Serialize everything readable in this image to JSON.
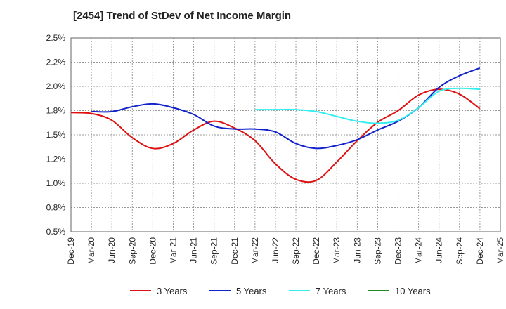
{
  "chart_data": {
    "type": "line",
    "title": "[2454]  Trend of StDev of Net Income Margin",
    "xlabel": "",
    "ylabel": "",
    "x_ticks": [
      "Dec-19",
      "Mar-20",
      "Jun-20",
      "Sep-20",
      "Dec-20",
      "Mar-21",
      "Jun-21",
      "Sep-21",
      "Dec-21",
      "Mar-22",
      "Jun-22",
      "Sep-22",
      "Dec-22",
      "Mar-23",
      "Jun-23",
      "Sep-23",
      "Dec-23",
      "Mar-24",
      "Jun-24",
      "Sep-24",
      "Dec-24",
      "Mar-25"
    ],
    "y_ticks": [
      "0.5%",
      "0.8%",
      "1.0%",
      "1.2%",
      "1.5%",
      "1.8%",
      "2.0%",
      "2.2%",
      "2.5%"
    ],
    "ylim": [
      0.5,
      2.5
    ],
    "grid": true,
    "legend_position": "bottom",
    "series": [
      {
        "name": "3 Years",
        "color": "#dd1111",
        "x": [
          "Dec-19",
          "Mar-20",
          "Jun-20",
          "Sep-20",
          "Dec-20",
          "Mar-21",
          "Jun-21",
          "Sep-21",
          "Dec-21",
          "Mar-22",
          "Jun-22",
          "Sep-22",
          "Dec-22",
          "Mar-23",
          "Jun-23",
          "Sep-23",
          "Dec-23",
          "Mar-24",
          "Jun-24",
          "Sep-24",
          "Dec-24"
        ],
        "values": [
          1.73,
          1.72,
          1.65,
          1.47,
          1.36,
          1.41,
          1.55,
          1.64,
          1.57,
          1.44,
          1.2,
          1.04,
          1.03,
          1.22,
          1.44,
          1.63,
          1.75,
          1.91,
          1.97,
          1.92,
          1.77
        ]
      },
      {
        "name": "5 Years",
        "color": "#1122cc",
        "x": [
          "Mar-20",
          "Jun-20",
          "Sep-20",
          "Dec-20",
          "Mar-21",
          "Jun-21",
          "Sep-21",
          "Dec-21",
          "Mar-22",
          "Jun-22",
          "Sep-22",
          "Dec-22",
          "Mar-23",
          "Jun-23",
          "Sep-23",
          "Dec-23",
          "Mar-24",
          "Jun-24",
          "Sep-24",
          "Dec-24"
        ],
        "values": [
          1.74,
          1.74,
          1.79,
          1.82,
          1.78,
          1.71,
          1.59,
          1.56,
          1.56,
          1.53,
          1.41,
          1.36,
          1.39,
          1.45,
          1.55,
          1.64,
          1.78,
          1.99,
          2.11,
          2.19
        ]
      },
      {
        "name": "7 Years",
        "color": "#33eeee",
        "x": [
          "Mar-22",
          "Jun-22",
          "Sep-22",
          "Dec-22",
          "Mar-23",
          "Jun-23",
          "Sep-23",
          "Dec-23",
          "Mar-24",
          "Jun-24",
          "Sep-24",
          "Dec-24"
        ],
        "values": [
          1.76,
          1.76,
          1.76,
          1.74,
          1.69,
          1.64,
          1.62,
          1.65,
          1.78,
          1.95,
          1.98,
          1.97
        ]
      },
      {
        "name": "10 Years",
        "color": "#228822",
        "x": [],
        "values": []
      }
    ]
  }
}
